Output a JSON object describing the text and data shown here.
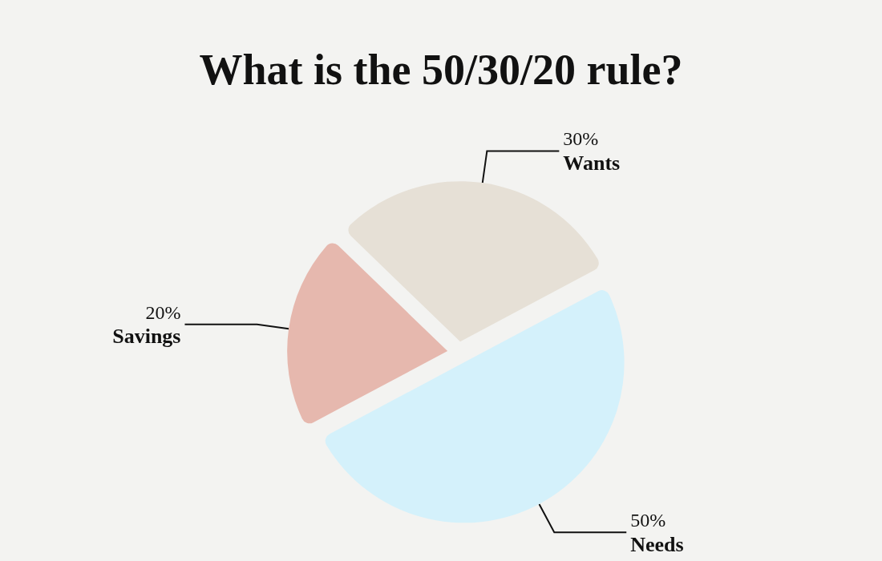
{
  "chart_data": {
    "type": "pie",
    "title": "What is the 50/30/20 rule?",
    "categories": [
      "Needs",
      "Savings",
      "Wants"
    ],
    "values": [
      50,
      20,
      30
    ],
    "colors": [
      "#d4f1fb",
      "#e6b8ae",
      "#e6e0d6"
    ],
    "value_labels": [
      "50%",
      "20%",
      "30%"
    ]
  }
}
